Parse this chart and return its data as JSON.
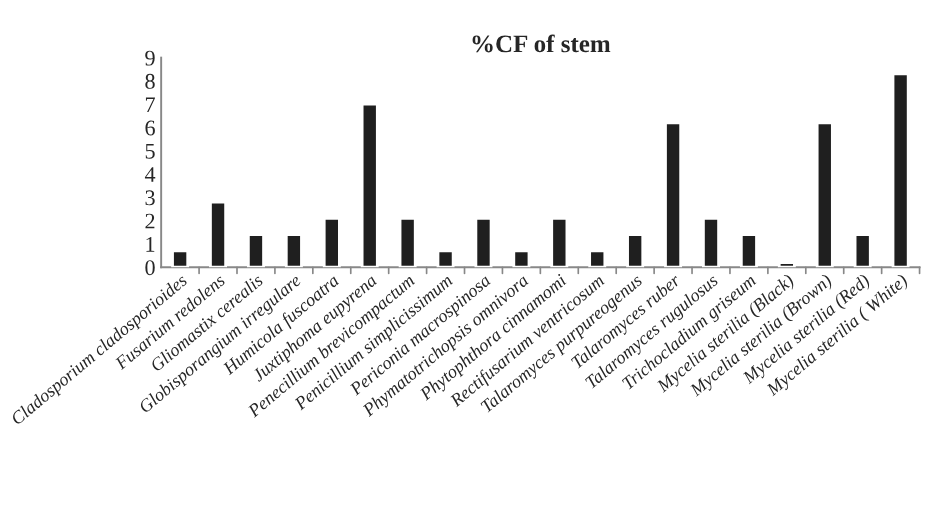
{
  "chart_data": {
    "type": "bar",
    "title": "%CF of stem",
    "categories": [
      "Cladosporium cladosporioides",
      "Fusarium redolens",
      "Gliomastix cerealis",
      "Globisporangium irregulare",
      "Humicola fuscoatra",
      "Juxtiphoma eupyrena",
      "Penecillium brevicompactum",
      "Penicillium simplicissimum",
      "Periconia macrospinosa",
      "Phymatotrichopsis omnivora",
      "Phytophthora cinnamomi",
      "Rectifusarium ventricosum",
      "Talaromyces purpureogenus",
      "Talaromyces ruber",
      "Talaromyces rugulosus",
      "Trichocladium griseum",
      "Mycelia sterilia (Black)",
      "Mycelia sterilia (Brown)",
      "Mycelia sterilia (Red)",
      "Mycelia sterilia ( White)"
    ],
    "values": [
      0.7,
      2.8,
      1.4,
      1.4,
      2.1,
      7.0,
      2.1,
      0.7,
      2.1,
      0.7,
      2.1,
      0.7,
      1.4,
      6.2,
      2.1,
      1.4,
      0.2,
      6.2,
      1.4,
      8.3
    ],
    "color": "#1f1f1f",
    "ylim": [
      0,
      9
    ],
    "yticks": [
      0,
      1,
      2,
      3,
      4,
      5,
      6,
      7,
      8,
      9
    ],
    "grid": false,
    "legend": false
  }
}
